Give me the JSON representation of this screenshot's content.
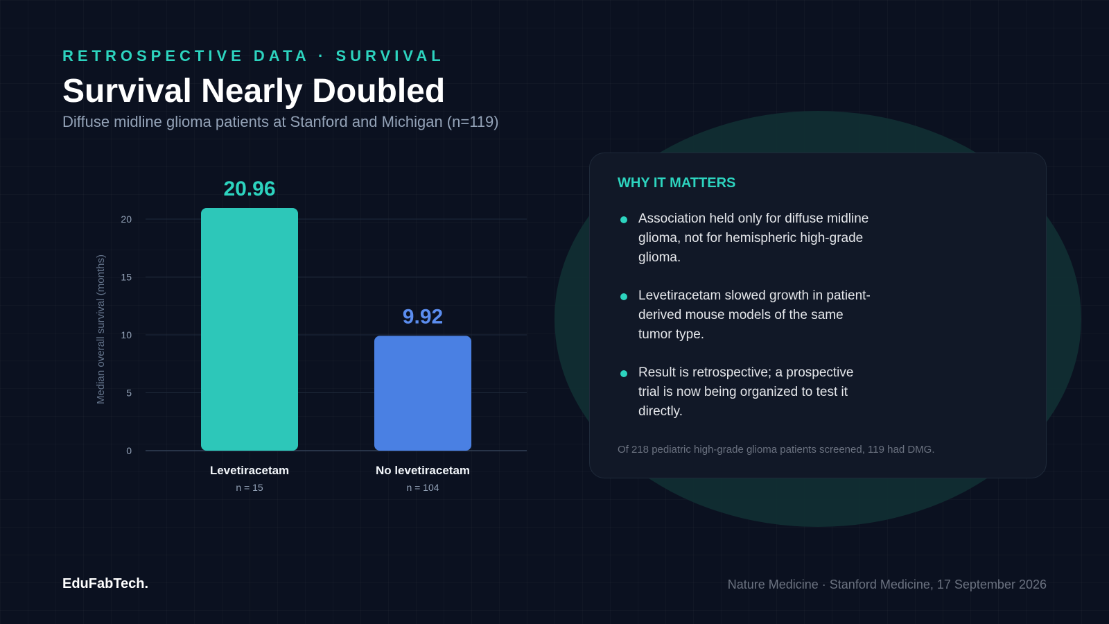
{
  "header": {
    "eyebrow": "RETROSPECTIVE DATA · SURVIVAL",
    "title": "Survival Nearly Doubled",
    "subtitle": "Diffuse midline glioma patients at Stanford and Michigan (n=119)"
  },
  "chart_data": {
    "type": "bar",
    "categories": [
      "Levetiracetam",
      "No levetiracetam"
    ],
    "sublabels": [
      "n = 15",
      "n = 104"
    ],
    "values": [
      20.96,
      9.92
    ],
    "value_labels": [
      "20.96",
      "9.92"
    ],
    "colors": [
      "#2dc7b9",
      "#4a80e3"
    ],
    "label_colors": [
      "#2dd4bf",
      "#5b8def"
    ],
    "ylabel": "Median overall survival (months)",
    "ylim": [
      0,
      20.96
    ],
    "yticks": [
      0,
      5,
      10,
      15,
      20
    ],
    "grid": true
  },
  "card": {
    "title": "WHY IT MATTERS",
    "bullets": [
      "Association held only for diffuse midline glioma, not for hemispheric high-grade glioma.",
      "Levetiracetam slowed growth in patient-derived mouse models of the same tumor type.",
      "Result is retrospective; a prospective trial is now being organized to test it directly."
    ],
    "note": "Of 218 pediatric high-grade glioma patients screened, 119 had DMG."
  },
  "footer": {
    "brand": "EduFabTech.",
    "source": "Nature Medicine · Stanford Medicine, 17 September 2026"
  }
}
